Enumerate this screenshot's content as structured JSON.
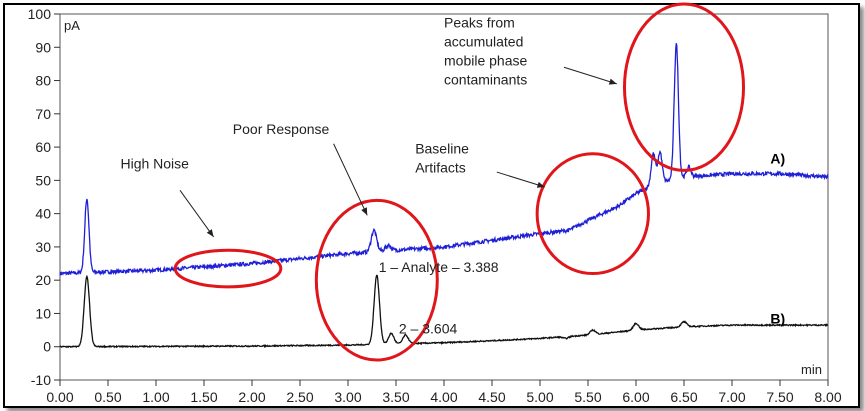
{
  "chart_data": {
    "type": "line",
    "title": "",
    "xlabel": "min",
    "ylabel": "pA",
    "xlim": [
      0,
      8
    ],
    "ylim": [
      -10,
      100
    ],
    "x_ticks": [
      "0.00",
      "0.50",
      "1.00",
      "1.50",
      "2.00",
      "2.50",
      "3.00",
      "3.50",
      "4.00",
      "4.50",
      "5.00",
      "5.50",
      "6.00",
      "6.50",
      "7.00",
      "7.50",
      "8.00"
    ],
    "y_ticks": [
      "-10",
      "0",
      "10",
      "20",
      "30",
      "40",
      "50",
      "60",
      "70",
      "80",
      "90",
      "100"
    ],
    "grid": false,
    "colors": {
      "A": "#1f1fd6",
      "B": "#111111",
      "circle": "#e0161b"
    },
    "series": [
      {
        "name": "A)",
        "baseline": [
          [
            0,
            22
          ],
          [
            0.5,
            22.5
          ],
          [
            1,
            23
          ],
          [
            1.5,
            24
          ],
          [
            2,
            25
          ],
          [
            2.5,
            26.5
          ],
          [
            3,
            28
          ],
          [
            3.5,
            29
          ],
          [
            4,
            30
          ],
          [
            4.5,
            32
          ],
          [
            5,
            34
          ],
          [
            5.3,
            35
          ],
          [
            5.5,
            38
          ],
          [
            5.8,
            42
          ],
          [
            6,
            46
          ],
          [
            6.2,
            49
          ],
          [
            6.5,
            51
          ],
          [
            7,
            52
          ],
          [
            7.5,
            52
          ],
          [
            8,
            51
          ]
        ],
        "peaks": [
          {
            "x": 0.28,
            "height": 44.5
          },
          {
            "x": 3.27,
            "height": 35
          },
          {
            "x": 3.42,
            "height": 30.5
          },
          {
            "x": 6.18,
            "height": 58
          },
          {
            "x": 6.25,
            "height": 58.5
          },
          {
            "x": 6.42,
            "height": 91
          },
          {
            "x": 6.55,
            "height": 54
          }
        ]
      },
      {
        "name": "B)",
        "baseline": [
          [
            0,
            0
          ],
          [
            2,
            0.2
          ],
          [
            3,
            0.5
          ],
          [
            4,
            1.2
          ],
          [
            4.5,
            1.8
          ],
          [
            5,
            2.5
          ],
          [
            5.5,
            3.5
          ],
          [
            6,
            5
          ],
          [
            6.5,
            6
          ],
          [
            7,
            6.5
          ],
          [
            8,
            6.5
          ]
        ],
        "peaks": [
          {
            "x": 0.28,
            "height": 21
          },
          {
            "x": 3.3,
            "height": 21.5
          },
          {
            "x": 3.45,
            "height": 4
          },
          {
            "x": 3.6,
            "height": 3.5
          },
          {
            "x": 5.27,
            "height": 2.5
          },
          {
            "x": 5.55,
            "height": 5
          },
          {
            "x": 6.0,
            "height": 7
          },
          {
            "x": 6.5,
            "height": 7.5
          }
        ]
      }
    ],
    "circles": [
      {
        "name": "high-noise-circle",
        "cx": 1.75,
        "cy": 23.5,
        "rx": 0.55,
        "ry": 5.5
      },
      {
        "name": "poor-response-circle",
        "cx": 3.3,
        "cy": 20,
        "rx": 0.63,
        "ry": 24
      },
      {
        "name": "baseline-artifacts-circle",
        "cx": 5.55,
        "cy": 40,
        "rx": 0.58,
        "ry": 18
      },
      {
        "name": "contaminants-circle",
        "cx": 6.5,
        "cy": 78,
        "rx": 0.62,
        "ry": 25
      }
    ],
    "annotations": [
      {
        "name": "high-noise-label",
        "lines": [
          "High Noise"
        ],
        "x": 0.63,
        "y": 53.5
      },
      {
        "name": "poor-response-label",
        "lines": [
          "Poor Response"
        ],
        "x": 1.8,
        "y": 64
      },
      {
        "name": "baseline-artifacts-label",
        "lines": [
          "Baseline",
          "Artifacts"
        ],
        "x": 3.7,
        "y": 58
      },
      {
        "name": "contaminants-label",
        "lines": [
          "Peaks from",
          "accumulated",
          "mobile phase",
          "contaminants"
        ],
        "x": 4.0,
        "y": 96
      }
    ],
    "arrows": [
      {
        "name": "high-noise-arrow",
        "from": [
          1.25,
          47
        ],
        "to": [
          1.6,
          33
        ]
      },
      {
        "name": "poor-response-arrow",
        "from": [
          2.85,
          61
        ],
        "to": [
          3.2,
          39.5
        ]
      },
      {
        "name": "baseline-artifacts-arrow",
        "from": [
          4.55,
          52.5
        ],
        "to": [
          5.05,
          48
        ]
      },
      {
        "name": "contaminants-arrow",
        "from": [
          5.25,
          84
        ],
        "to": [
          5.8,
          79
        ]
      }
    ],
    "peak_labels": [
      {
        "name": "analyte-peak-label",
        "text": "1 – Analyte – 3.388",
        "x": 3.32,
        "y": 22.5
      },
      {
        "name": "peak-2-label",
        "text": "2 – 3.604",
        "x": 3.53,
        "y": 4
      }
    ],
    "series_labels": [
      {
        "name": "series-a-label",
        "text": "A)",
        "x": 7.4,
        "y": 55
      },
      {
        "name": "series-b-label",
        "text": "B)",
        "x": 7.4,
        "y": 7
      }
    ]
  }
}
